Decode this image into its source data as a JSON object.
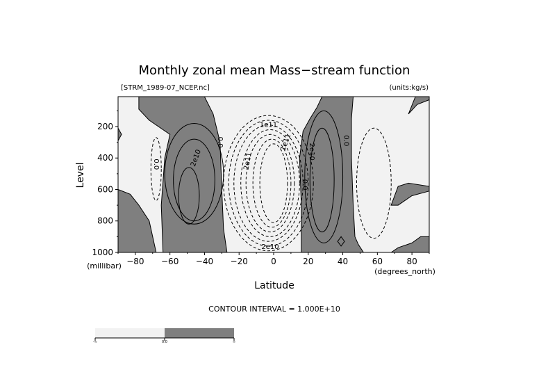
{
  "chart_data": {
    "type": "contour",
    "title": "Monthly zonal mean Mass−stream function",
    "subtitle_left": "[STRM_1989-07_NCEP.nc]",
    "subtitle_right": "(units:kg/s)",
    "xlabel": "Latitude",
    "ylabel": "Level",
    "x_unit": "(degrees_north)",
    "y_unit": "(millibar)",
    "xlim": [
      -90,
      90
    ],
    "ylim": [
      1000,
      10
    ],
    "x_ticks": [
      -80,
      -60,
      -40,
      -20,
      0,
      20,
      40,
      60,
      80
    ],
    "x_tick_labels": [
      "−80",
      "−60",
      "−40",
      "−20",
      "0",
      "20",
      "40",
      "60",
      "80"
    ],
    "y_ticks": [
      200,
      400,
      600,
      800,
      1000
    ],
    "y_tick_labels": [
      "200",
      "400",
      "600",
      "800",
      "1000"
    ],
    "contour_interval_label": "CONTOUR INTERVAL = 1.000E+10",
    "contour_interval": 10000000000,
    "shading": {
      "positive": "#7f7f7f",
      "negative": "#f2f2f2"
    },
    "colorbar_labels": [
      "-∞",
      "0.0",
      "∞"
    ],
    "contour_labels": [
      {
        "text": "0.0",
        "x": -68,
        "p": 440,
        "angle": 90
      },
      {
        "text": "2e10",
        "x": -45,
        "p": 400,
        "angle": -70
      },
      {
        "text": "0.0",
        "x": -31,
        "p": 300,
        "angle": 90
      },
      {
        "text": "2e11",
        "x": -15,
        "p": 420,
        "angle": -80
      },
      {
        "text": "1e11",
        "x": -3,
        "p": 190,
        "angle": 0
      },
      {
        "text": "1e11",
        "x": 7,
        "p": 300,
        "angle": -70
      },
      {
        "text": "0.0",
        "x": 18,
        "p": 570,
        "angle": 90
      },
      {
        "text": "2e10",
        "x": 22,
        "p": 360,
        "angle": 90
      },
      {
        "text": "0.0",
        "x": 42,
        "p": 290,
        "angle": 90
      },
      {
        "text": "2e10",
        "x": -2,
        "p": 965,
        "angle": 0
      }
    ],
    "positive_regions": [
      {
        "name": "southern-high-latitude-cell",
        "outline": [
          [
            -90,
            600
          ],
          [
            -83,
            630
          ],
          [
            -78,
            700
          ],
          [
            -72,
            800
          ],
          [
            -70,
            900
          ],
          [
            -68,
            1000
          ],
          [
            -90,
            1000
          ]
        ]
      },
      {
        "name": "southern-ferrel-cell",
        "outline": [
          [
            -78,
            10
          ],
          [
            -40,
            10
          ],
          [
            -35,
            120
          ],
          [
            -31,
            300
          ],
          [
            -30,
            600
          ],
          [
            -29,
            850
          ],
          [
            -27,
            1000
          ],
          [
            -64,
            1000
          ],
          [
            -65,
            700
          ],
          [
            -63,
            400
          ],
          [
            -60,
            250
          ],
          [
            -72,
            160
          ],
          [
            -78,
            90
          ]
        ]
      },
      {
        "name": "southern-polar-blob",
        "outline": [
          [
            -90,
            210
          ],
          [
            -88,
            250
          ],
          [
            -90,
            290
          ]
        ]
      },
      {
        "name": "northern-ferrel-cell",
        "outline": [
          [
            16,
            1000
          ],
          [
            16,
            700
          ],
          [
            15,
            400
          ],
          [
            17,
            230
          ],
          [
            21,
            150
          ],
          [
            25,
            80
          ],
          [
            28,
            10
          ],
          [
            46,
            10
          ],
          [
            45,
            150
          ],
          [
            45,
            400
          ],
          [
            46,
            700
          ],
          [
            47,
            900
          ],
          [
            49,
            950
          ],
          [
            52,
            1000
          ]
        ]
      },
      {
        "name": "northern-polar-cell",
        "outline": [
          [
            68,
            1000
          ],
          [
            72,
            970
          ],
          [
            80,
            940
          ],
          [
            85,
            900
          ],
          [
            90,
            900
          ],
          [
            90,
            1000
          ]
        ]
      },
      {
        "name": "northern-polar-tongue",
        "outline": [
          [
            78,
            120
          ],
          [
            83,
            60
          ],
          [
            90,
            30
          ],
          [
            90,
            10
          ],
          [
            82,
            10
          ]
        ]
      },
      {
        "name": "northern-cap",
        "outline": [
          [
            68,
            700
          ],
          [
            72,
            580
          ],
          [
            78,
            560
          ],
          [
            90,
            580
          ],
          [
            90,
            610
          ],
          [
            80,
            640
          ],
          [
            72,
            700
          ]
        ]
      },
      {
        "name": "northern-small-blob",
        "outline": [
          [
            37,
            930
          ],
          [
            39,
            900
          ],
          [
            41,
            930
          ],
          [
            39,
            960
          ]
        ]
      }
    ],
    "contours": [
      {
        "level": "neg",
        "dashed": true,
        "cx": -68,
        "cp": 470,
        "rx": 3,
        "rp": 200
      },
      {
        "level": "pos",
        "dashed": false,
        "cx": -46,
        "cp": 500,
        "rx": 17,
        "rp": 320
      },
      {
        "level": "pos",
        "dashed": false,
        "cx": -46,
        "cp": 540,
        "rx": 12,
        "rp": 260
      },
      {
        "level": "pos",
        "dashed": false,
        "cx": -49,
        "cp": 640,
        "rx": 6,
        "rp": 180
      },
      {
        "level": "neg",
        "dashed": true,
        "cx": -3,
        "cp": 560,
        "rx": 26,
        "rp": 430
      },
      {
        "level": "neg",
        "dashed": true,
        "cx": -3,
        "cp": 560,
        "rx": 23,
        "rp": 400
      },
      {
        "level": "neg",
        "dashed": true,
        "cx": -3,
        "cp": 560,
        "rx": 20,
        "rp": 370
      },
      {
        "level": "neg",
        "dashed": true,
        "cx": -2,
        "cp": 560,
        "rx": 17,
        "rp": 340
      },
      {
        "level": "neg",
        "dashed": true,
        "cx": -2,
        "cp": 560,
        "rx": 14,
        "rp": 310
      },
      {
        "level": "neg",
        "dashed": true,
        "cx": -1,
        "cp": 560,
        "rx": 11,
        "rp": 280
      },
      {
        "level": "neg",
        "dashed": true,
        "cx": 0,
        "cp": 560,
        "rx": 8,
        "rp": 250
      },
      {
        "level": "pos",
        "dashed": false,
        "cx": 29,
        "cp": 520,
        "rx": 11,
        "rp": 420
      },
      {
        "level": "pos",
        "dashed": false,
        "cx": 28,
        "cp": 540,
        "rx": 7,
        "rp": 330
      },
      {
        "level": "neg",
        "dashed": true,
        "cx": 58,
        "cp": 560,
        "rx": 10,
        "rp": 350
      }
    ]
  }
}
